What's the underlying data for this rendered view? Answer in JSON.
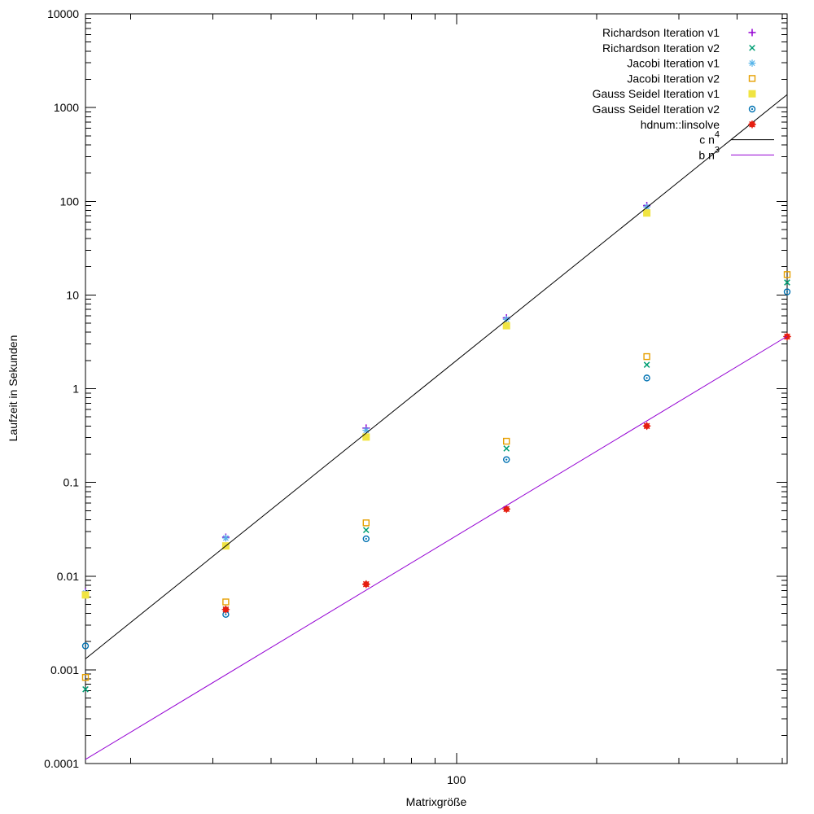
{
  "chart_data": {
    "type": "scatter",
    "title": "",
    "xlabel": "Matrixgröße",
    "ylabel": "Laufzeit in Sekunden",
    "x_scale": "log",
    "y_scale": "log",
    "xlim": [
      16,
      512
    ],
    "ylim": [
      0.0001,
      10000
    ],
    "grid": false,
    "legend_position": "top-right-inside",
    "x_ticks": [
      {
        "value": 100,
        "label": "100"
      }
    ],
    "y_ticks": [
      {
        "value": 0.0001,
        "label": "0.0001"
      },
      {
        "value": 0.001,
        "label": "0.001"
      },
      {
        "value": 0.01,
        "label": "0.01"
      },
      {
        "value": 0.1,
        "label": "0.1"
      },
      {
        "value": 1,
        "label": "1"
      },
      {
        "value": 10,
        "label": "10"
      },
      {
        "value": 100,
        "label": "100"
      },
      {
        "value": 1000,
        "label": "1000"
      },
      {
        "value": 10000,
        "label": "10000"
      }
    ],
    "series": [
      {
        "name": "Richardson Iteration v1",
        "marker": "plus",
        "color": "#9400d3",
        "points": [
          [
            16,
            0.0068
          ],
          [
            32,
            0.026
          ],
          [
            64,
            0.38
          ],
          [
            128,
            5.7
          ],
          [
            256,
            90
          ]
        ]
      },
      {
        "name": "Richardson Iteration v2",
        "marker": "cross",
        "color": "#009e73",
        "points": [
          [
            16,
            0.00062
          ],
          [
            32,
            0.0044
          ],
          [
            64,
            0.031
          ],
          [
            128,
            0.23
          ],
          [
            256,
            1.8
          ],
          [
            512,
            13.6
          ]
        ]
      },
      {
        "name": "Jacobi Iteration v1",
        "marker": "star",
        "color": "#56b4e9",
        "points": [
          [
            16,
            0.0066
          ],
          [
            32,
            0.0255
          ],
          [
            64,
            0.36
          ],
          [
            128,
            5.5
          ],
          [
            256,
            87
          ]
        ]
      },
      {
        "name": "Jacobi Iteration v2",
        "marker": "square-open",
        "color": "#e69f00",
        "points": [
          [
            16,
            0.00083
          ],
          [
            32,
            0.0053
          ],
          [
            64,
            0.037
          ],
          [
            128,
            0.275
          ],
          [
            256,
            2.2
          ],
          [
            512,
            16.5
          ]
        ]
      },
      {
        "name": "Gauss Seidel Iteration v1",
        "marker": "square-filled",
        "color": "#f0e442",
        "points": [
          [
            16,
            0.0063
          ],
          [
            32,
            0.021
          ],
          [
            64,
            0.305
          ],
          [
            128,
            4.7
          ],
          [
            256,
            75
          ]
        ]
      },
      {
        "name": "Gauss Seidel Iteration v2",
        "marker": "circle-open",
        "color": "#0072b2",
        "points": [
          [
            16,
            0.0018
          ],
          [
            32,
            0.0039
          ],
          [
            64,
            0.025
          ],
          [
            128,
            0.175
          ],
          [
            256,
            1.3
          ],
          [
            512,
            10.8
          ]
        ]
      },
      {
        "name": "hdnum::linsolve",
        "marker": "circle-filled",
        "color": "#e51e10",
        "points": [
          [
            32,
            0.0044
          ],
          [
            64,
            0.0082
          ],
          [
            128,
            0.052
          ],
          [
            256,
            0.4
          ],
          [
            512,
            3.6
          ]
        ]
      }
    ],
    "lines": [
      {
        "name": "c n^4",
        "color": "#000000",
        "coeff": 2e-08,
        "exponent": 4
      },
      {
        "name": "b n^3",
        "color": "#9400d3",
        "coeff": 2.7e-08,
        "exponent": 3
      }
    ]
  }
}
